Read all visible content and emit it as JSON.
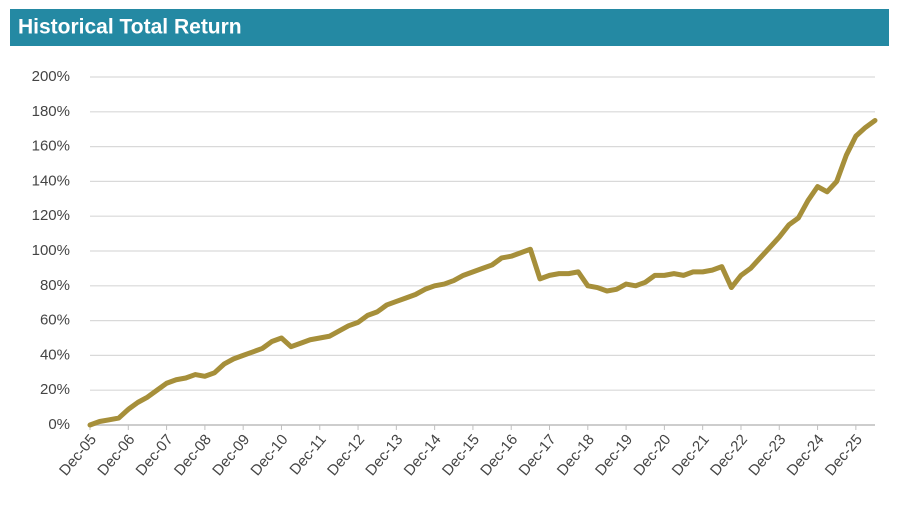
{
  "chart_data": {
    "type": "line",
    "title": "Historical Total Return",
    "categories": [
      "Dec-05",
      null,
      null,
      null,
      "Dec-06",
      null,
      null,
      null,
      "Dec-07",
      null,
      null,
      null,
      "Dec-08",
      null,
      null,
      null,
      "Dec-09",
      null,
      null,
      null,
      "Dec-10",
      null,
      null,
      null,
      "Dec-11",
      null,
      null,
      null,
      "Dec-12",
      null,
      null,
      null,
      "Dec-13",
      null,
      null,
      null,
      "Dec-14",
      null,
      null,
      null,
      "Dec-15",
      null,
      null,
      null,
      "Dec-16",
      null,
      null,
      null,
      "Dec-17",
      null,
      null,
      null,
      "Dec-18",
      null,
      null,
      null,
      "Dec-19",
      null,
      null,
      null,
      "Dec-20",
      null,
      null,
      null,
      "Dec-21",
      null,
      null,
      null,
      "Dec-22",
      null,
      null,
      null,
      "Dec-23",
      null,
      null,
      null,
      "Dec-24",
      null,
      null,
      null,
      "Dec-25",
      null,
      null
    ],
    "values": [
      0,
      2,
      3,
      4,
      9,
      13,
      16,
      20,
      24,
      26,
      27,
      29,
      28,
      30,
      35,
      38,
      40,
      42,
      44,
      48,
      50,
      45,
      47,
      49,
      50,
      51,
      54,
      57,
      59,
      63,
      65,
      69,
      71,
      73,
      75,
      78,
      80,
      81,
      83,
      86,
      88,
      90,
      92,
      96,
      97,
      99,
      101,
      84,
      86,
      87,
      87,
      88,
      80,
      79,
      77,
      78,
      81,
      80,
      82,
      86,
      86,
      87,
      86,
      88,
      88,
      89,
      91,
      79,
      86,
      90,
      96,
      102,
      108,
      115,
      119,
      129,
      137,
      134,
      140,
      155,
      166,
      171,
      175
    ],
    "color": "#a68f3a",
    "ylim": [
      0,
      200
    ],
    "yticks": [
      {
        "value": 0,
        "label": "0%"
      },
      {
        "value": 20,
        "label": "20%"
      },
      {
        "value": 40,
        "label": "40%"
      },
      {
        "value": 60,
        "label": "60%"
      },
      {
        "value": 80,
        "label": "80%"
      },
      {
        "value": 100,
        "label": "100%"
      },
      {
        "value": 120,
        "label": "120%"
      },
      {
        "value": 140,
        "label": "140%"
      },
      {
        "value": 160,
        "label": "160%"
      },
      {
        "value": 180,
        "label": "180%"
      },
      {
        "value": 200,
        "label": "200%"
      }
    ],
    "grid": true
  }
}
